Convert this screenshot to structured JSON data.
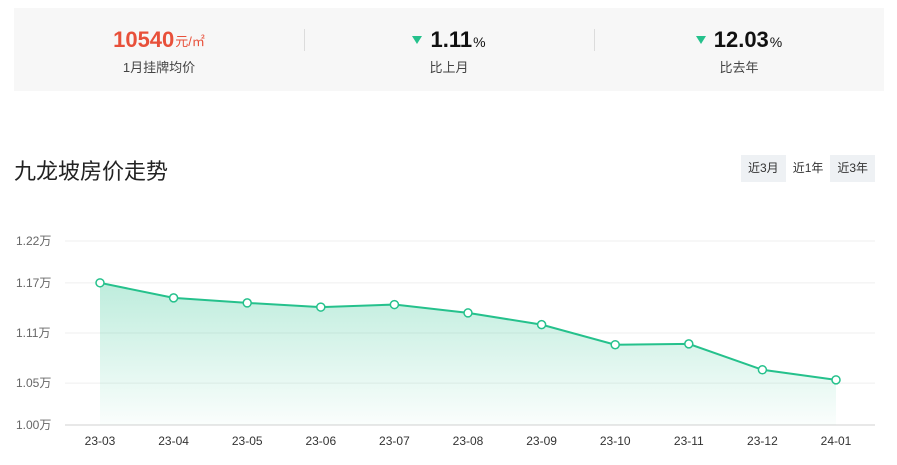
{
  "stats": {
    "price": {
      "value": "10540",
      "unit": "元/㎡",
      "label": "1月挂牌均价"
    },
    "mom": {
      "value": "1.11",
      "unit": "%",
      "label": "比上月",
      "direction": "down"
    },
    "yoy": {
      "value": "12.03",
      "unit": "%",
      "label": "比去年",
      "direction": "down"
    }
  },
  "title": "九龙坡房价走势",
  "range_tabs": [
    {
      "label": "近3月",
      "active": false
    },
    {
      "label": "近1年",
      "active": true
    },
    {
      "label": "近3年",
      "active": false
    }
  ],
  "colors": {
    "accent": "#25c18c",
    "price": "#e8503a"
  },
  "chart_data": {
    "type": "area",
    "title": "",
    "xlabel": "",
    "ylabel": "",
    "categories": [
      "23-03",
      "23-04",
      "23-05",
      "23-06",
      "23-07",
      "23-08",
      "23-09",
      "23-10",
      "23-11",
      "23-12",
      "24-01"
    ],
    "series": [
      {
        "values": [
          11700,
          11520,
          11460,
          11410,
          11440,
          11340,
          11200,
          10960,
          10970,
          10660,
          10540
        ]
      }
    ],
    "ylim": [
      10000,
      12200
    ],
    "yticks": [
      10000,
      10500,
      11100,
      11700,
      12200
    ],
    "ytick_labels": [
      "1.00万",
      "1.05万",
      "1.11万",
      "1.17万",
      "1.22万"
    ],
    "grid": true,
    "legend": "none"
  }
}
